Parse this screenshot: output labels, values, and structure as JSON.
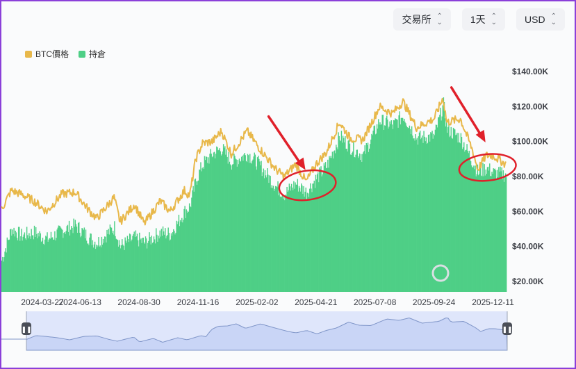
{
  "toolbar": {
    "exchange_label": "交易所",
    "interval_label": "1天",
    "currency_label": "USD"
  },
  "icons": {
    "selector": "chevron-up-down-icon",
    "range_handle": "pause-handle-icon",
    "watermark": "coinglass-watermark-icon"
  },
  "chart_data": {
    "type": "bar",
    "legend_position": "top-left",
    "grid": false,
    "title": "",
    "xlabel": "",
    "ylabel": "",
    "colors": {
      "price": "#e8b84a",
      "open_interest": "#4ecf86",
      "navigator": "#dfe6fb",
      "annotation": "#e0202a"
    },
    "x_ticks": [
      "2024-03-27",
      "2024-06-13",
      "2024-08-30",
      "2024-11-16",
      "2025-02-02",
      "2025-04-21",
      "2025-07-08",
      "2025-09-24",
      "2025-12-11"
    ],
    "y_ticks": [
      "$20.00K",
      "$40.00K",
      "$60.00K",
      "$80.00K",
      "$100.00K",
      "$120.00K",
      "$140.00K"
    ],
    "ylim": [
      14000,
      146000
    ],
    "x_start": "2024-03-01",
    "x_end": "2025-12-28",
    "series": [
      {
        "name": "BTC價格",
        "kind": "line",
        "points": [
          [
            "2024-03-01",
            61000
          ],
          [
            "2024-03-14",
            72000
          ],
          [
            "2024-03-27",
            70000
          ],
          [
            "2024-04-13",
            66000
          ],
          [
            "2024-04-30",
            60000
          ],
          [
            "2024-05-20",
            70000
          ],
          [
            "2024-06-07",
            71000
          ],
          [
            "2024-06-24",
            61000
          ],
          [
            "2024-07-05",
            56000
          ],
          [
            "2024-07-28",
            68000
          ],
          [
            "2024-08-05",
            54000
          ],
          [
            "2024-08-24",
            64000
          ],
          [
            "2024-09-06",
            53000
          ],
          [
            "2024-09-27",
            66000
          ],
          [
            "2024-10-10",
            60000
          ],
          [
            "2024-10-29",
            72000
          ],
          [
            "2024-11-05",
            69000
          ],
          [
            "2024-11-13",
            90000
          ],
          [
            "2024-11-22",
            99000
          ],
          [
            "2024-12-05",
            100000
          ],
          [
            "2024-12-17",
            106000
          ],
          [
            "2024-12-30",
            93000
          ],
          [
            "2025-01-20",
            106000
          ],
          [
            "2025-02-02",
            98000
          ],
          [
            "2025-02-27",
            84000
          ],
          [
            "2025-03-10",
            80000
          ],
          [
            "2025-03-25",
            87000
          ],
          [
            "2025-04-08",
            77000
          ],
          [
            "2025-04-21",
            87000
          ],
          [
            "2025-05-05",
            94000
          ],
          [
            "2025-05-22",
            111000
          ],
          [
            "2025-06-05",
            102000
          ],
          [
            "2025-06-22",
            101000
          ],
          [
            "2025-07-14",
            120000
          ],
          [
            "2025-07-31",
            116000
          ],
          [
            "2025-08-14",
            123000
          ],
          [
            "2025-09-01",
            108000
          ],
          [
            "2025-09-24",
            113000
          ],
          [
            "2025-10-06",
            125000
          ],
          [
            "2025-10-11",
            111000
          ],
          [
            "2025-10-29",
            113000
          ],
          [
            "2025-11-14",
            95000
          ],
          [
            "2025-11-21",
            84000
          ],
          [
            "2025-12-02",
            92000
          ],
          [
            "2025-12-11",
            92000
          ],
          [
            "2025-12-28",
            87000
          ]
        ]
      },
      {
        "name": "持倉",
        "kind": "bar",
        "points": [
          [
            "2024-03-01",
            32000
          ],
          [
            "2024-03-14",
            50000
          ],
          [
            "2024-03-27",
            46000
          ],
          [
            "2024-04-13",
            48000
          ],
          [
            "2024-04-30",
            44000
          ],
          [
            "2024-05-20",
            49000
          ],
          [
            "2024-06-07",
            52000
          ],
          [
            "2024-06-24",
            45000
          ],
          [
            "2024-07-05",
            42000
          ],
          [
            "2024-07-28",
            51000
          ],
          [
            "2024-08-05",
            40000
          ],
          [
            "2024-08-24",
            45000
          ],
          [
            "2024-09-06",
            42000
          ],
          [
            "2024-09-27",
            48000
          ],
          [
            "2024-10-10",
            47000
          ],
          [
            "2024-10-29",
            60000
          ],
          [
            "2024-11-05",
            63000
          ],
          [
            "2024-11-13",
            78000
          ],
          [
            "2024-11-22",
            87000
          ],
          [
            "2024-12-05",
            93000
          ],
          [
            "2024-12-17",
            96000
          ],
          [
            "2024-12-30",
            88000
          ],
          [
            "2025-01-20",
            93000
          ],
          [
            "2025-02-02",
            88000
          ],
          [
            "2025-02-27",
            74000
          ],
          [
            "2025-03-10",
            70000
          ],
          [
            "2025-03-25",
            76000
          ],
          [
            "2025-04-08",
            71000
          ],
          [
            "2025-04-21",
            79000
          ],
          [
            "2025-05-05",
            86000
          ],
          [
            "2025-05-22",
            103000
          ],
          [
            "2025-06-05",
            97000
          ],
          [
            "2025-06-22",
            92000
          ],
          [
            "2025-07-14",
            112000
          ],
          [
            "2025-07-31",
            109000
          ],
          [
            "2025-08-14",
            115000
          ],
          [
            "2025-09-01",
            102000
          ],
          [
            "2025-09-24",
            103000
          ],
          [
            "2025-10-06",
            121000
          ],
          [
            "2025-10-11",
            107000
          ],
          [
            "2025-10-29",
            102000
          ],
          [
            "2025-11-14",
            88000
          ],
          [
            "2025-11-21",
            82000
          ],
          [
            "2025-12-02",
            85000
          ],
          [
            "2025-12-11",
            82000
          ],
          [
            "2025-12-28",
            81000
          ]
        ]
      }
    ],
    "annotations": [
      {
        "shape": "arrow-and-ellipse",
        "around_date": "2025-04-08",
        "around_value": 75000
      },
      {
        "shape": "arrow-and-ellipse",
        "around_date": "2025-12-02",
        "around_value": 86000
      }
    ]
  }
}
